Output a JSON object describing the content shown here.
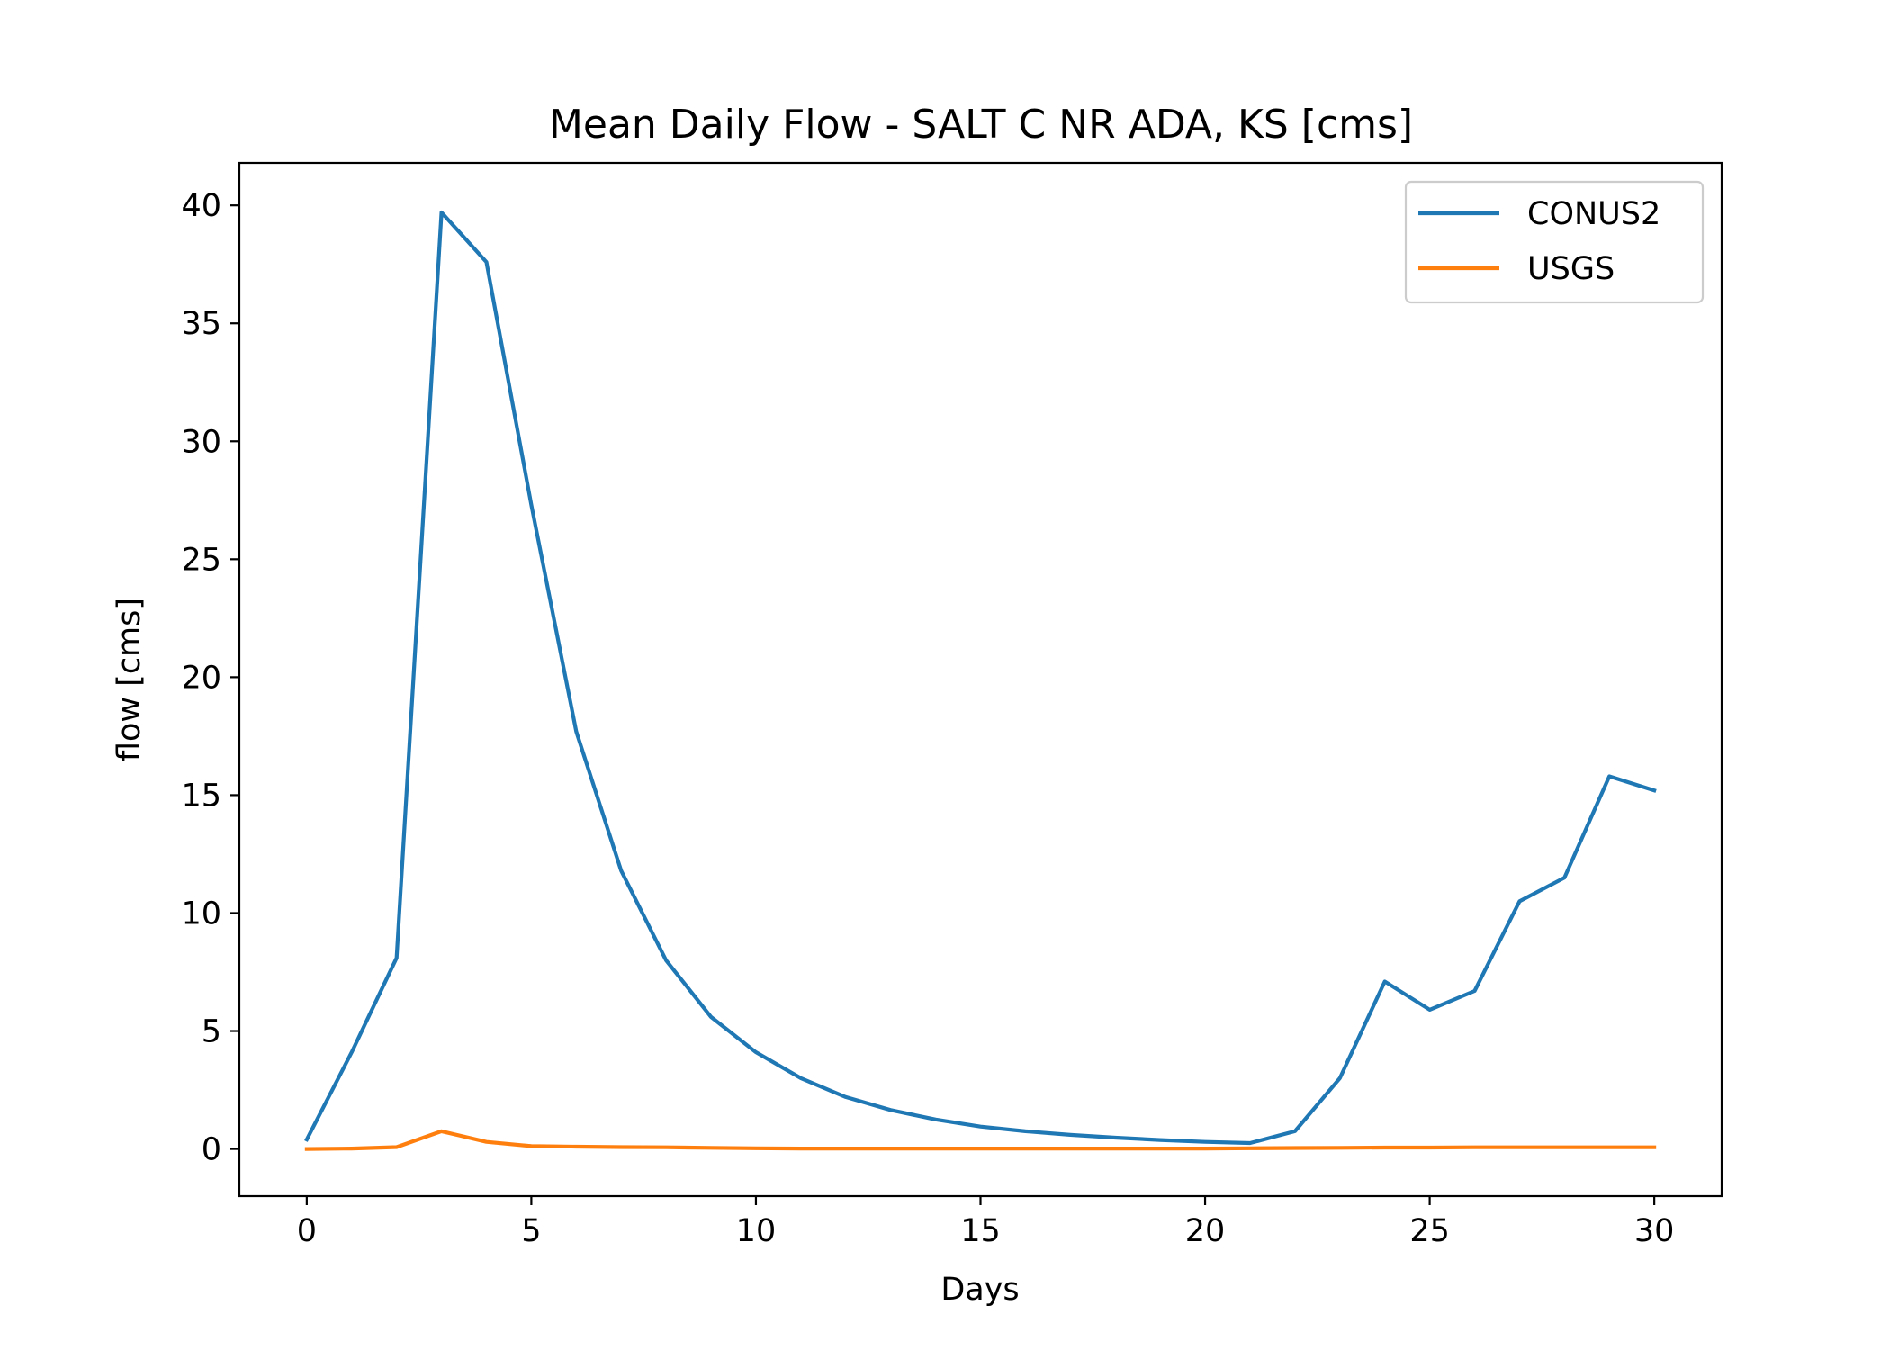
{
  "chart_data": {
    "type": "line",
    "title": "Mean Daily Flow - SALT C NR ADA, KS [cms]",
    "xlabel": "Days",
    "ylabel": "flow [cms]",
    "xlim": [
      -1.5,
      31.5
    ],
    "ylim": [
      -2,
      41.8
    ],
    "xticks": [
      0,
      5,
      10,
      15,
      20,
      25,
      30
    ],
    "yticks": [
      0,
      5,
      10,
      15,
      20,
      25,
      30,
      35,
      40
    ],
    "grid": false,
    "legend_position": "top-right",
    "x": [
      0,
      1,
      2,
      3,
      4,
      5,
      6,
      7,
      8,
      9,
      10,
      11,
      12,
      13,
      14,
      15,
      16,
      17,
      18,
      19,
      20,
      21,
      22,
      23,
      24,
      25,
      26,
      27,
      28,
      29,
      30
    ],
    "series": [
      {
        "name": "CONUS2",
        "color": "#1f77b4",
        "values": [
          0.4,
          4.1,
          8.1,
          39.7,
          37.6,
          27.3,
          17.7,
          11.8,
          8.0,
          5.6,
          4.1,
          3.0,
          2.2,
          1.65,
          1.25,
          0.95,
          0.75,
          0.6,
          0.48,
          0.38,
          0.3,
          0.25,
          0.75,
          3.0,
          7.1,
          5.9,
          6.7,
          10.5,
          11.5,
          15.8,
          15.2
        ]
      },
      {
        "name": "USGS",
        "color": "#ff7f0e",
        "values": [
          0.0,
          0.02,
          0.08,
          0.75,
          0.3,
          0.12,
          0.1,
          0.08,
          0.07,
          0.05,
          0.03,
          0.02,
          0.02,
          0.02,
          0.02,
          0.02,
          0.02,
          0.02,
          0.02,
          0.02,
          0.02,
          0.03,
          0.04,
          0.05,
          0.06,
          0.06,
          0.07,
          0.07,
          0.07,
          0.07,
          0.07
        ]
      }
    ]
  }
}
